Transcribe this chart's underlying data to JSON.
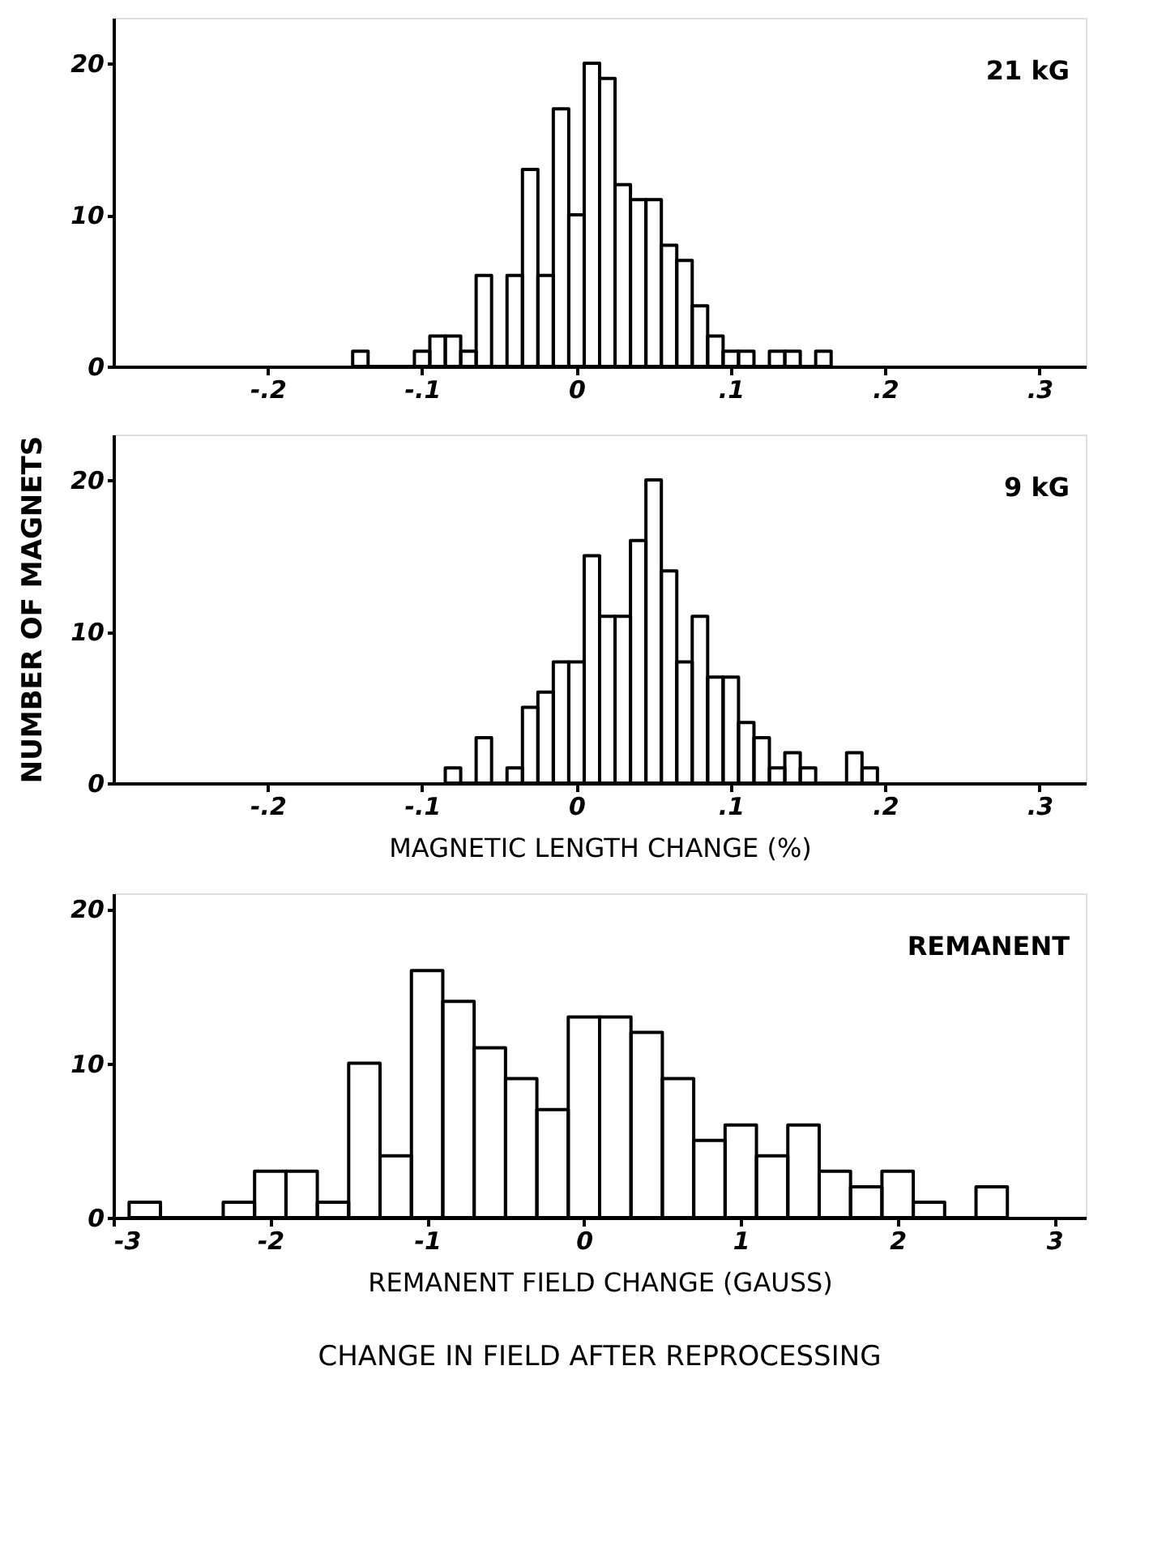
{
  "chart_data": [
    {
      "type": "histogram",
      "annotations": [
        "21 kG"
      ],
      "bins": [
        -0.145,
        -0.135,
        -0.125,
        -0.115,
        -0.105,
        -0.095,
        -0.085,
        -0.075,
        -0.065,
        -0.055,
        -0.045,
        -0.035,
        -0.025,
        -0.015,
        -0.005,
        0.005,
        0.015,
        0.025,
        0.035,
        0.045,
        0.055,
        0.065,
        0.075,
        0.085,
        0.095,
        0.105,
        0.115,
        0.125,
        0.135,
        0.145,
        0.155,
        0.165
      ],
      "values": [
        1,
        0,
        0,
        0,
        1,
        2,
        2,
        1,
        6,
        0,
        6,
        13,
        6,
        17,
        10,
        20,
        19,
        12,
        11,
        11,
        8,
        7,
        4,
        2,
        1,
        1,
        0,
        1,
        1,
        0,
        1
      ],
      "color": "#000000",
      "xlim": [
        -0.3,
        0.33
      ],
      "xticks": [
        {
          "value": -0.2,
          "label": "-.2"
        },
        {
          "value": -0.1,
          "label": "-.1"
        },
        0,
        {
          "value": 0.1,
          "label": ".1"
        },
        {
          "value": 0.2,
          "label": ".2"
        },
        {
          "value": 0.3,
          "label": ".3"
        }
      ],
      "ylim": [
        0,
        23
      ],
      "yticks": [
        0,
        10,
        20
      ],
      "grid": false
    },
    {
      "type": "histogram",
      "xlabel": "MAGNETIC LENGTH CHANGE (%)",
      "ylabel": "NUMBER OF MAGNETS",
      "annotations": [
        "9 kG"
      ],
      "bins": [
        -0.085,
        -0.075,
        -0.065,
        -0.055,
        -0.045,
        -0.035,
        -0.025,
        -0.015,
        -0.005,
        0.005,
        0.015,
        0.025,
        0.035,
        0.045,
        0.055,
        0.065,
        0.075,
        0.085,
        0.095,
        0.105,
        0.115,
        0.125,
        0.135,
        0.145,
        0.155,
        0.165,
        0.175,
        0.185,
        0.195
      ],
      "values": [
        1,
        0,
        3,
        0,
        1,
        5,
        6,
        8,
        8,
        15,
        11,
        11,
        16,
        20,
        14,
        8,
        11,
        7,
        7,
        4,
        3,
        1,
        2,
        1,
        0,
        0,
        2,
        1
      ],
      "color": "#000000",
      "xlim": [
        -0.3,
        0.33
      ],
      "xticks": [
        {
          "value": -0.2,
          "label": "-.2"
        },
        {
          "value": -0.1,
          "label": "-.1"
        },
        0,
        {
          "value": 0.1,
          "label": ".1"
        },
        {
          "value": 0.2,
          "label": ".2"
        },
        {
          "value": 0.3,
          "label": ".3"
        }
      ],
      "ylim": [
        0,
        23
      ],
      "yticks": [
        0,
        10,
        20
      ],
      "grid": false
    },
    {
      "type": "histogram",
      "xlabel": "REMANENT FIELD CHANGE (GAUSS)",
      "annotations": [
        "REMANENT",
        "CHANGE IN FIELD AFTER REPROCESSING"
      ],
      "bins": [
        -2.9,
        -2.7,
        -2.5,
        -2.3,
        -2.1,
        -1.9,
        -1.7,
        -1.5,
        -1.3,
        -1.1,
        -0.9,
        -0.7,
        -0.5,
        -0.3,
        -0.1,
        0.1,
        0.3,
        0.5,
        0.7,
        0.9,
        1.1,
        1.3,
        1.5,
        1.7,
        1.9,
        2.1,
        2.3,
        2.5,
        2.7
      ],
      "values": [
        1,
        0,
        0,
        1,
        3,
        3,
        1,
        10,
        4,
        16,
        14,
        11,
        9,
        7,
        13,
        13,
        12,
        9,
        5,
        6,
        4,
        6,
        3,
        2,
        3,
        1,
        0,
        2
      ],
      "color": "#000000",
      "xlim": [
        -3,
        3.2
      ],
      "xticks": [
        -3,
        -2,
        -1,
        0,
        1,
        2,
        3
      ],
      "ylim": [
        0,
        21
      ],
      "yticks": [
        0,
        10,
        20
      ],
      "grid": false
    }
  ]
}
